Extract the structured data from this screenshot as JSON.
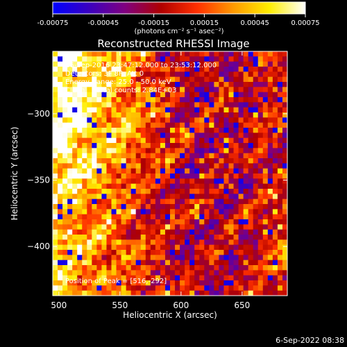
{
  "colorbar": {
    "ticks": [
      "-0.00075",
      "-0.00045",
      "-0.00015",
      "0.00015",
      "0.00045",
      "0.00075"
    ],
    "tick_values": [
      -0.00075,
      -0.00045,
      -0.00015,
      0.00015,
      0.00045,
      0.00075
    ],
    "range": [
      -0.00075,
      0.00075
    ],
    "units": "(photons cm⁻² s⁻¹ asec⁻²)",
    "colors": [
      "#0000ff",
      "#3a00c0",
      "#800080",
      "#b00000",
      "#ff3000",
      "#ff9900",
      "#ffee00",
      "#ffffff"
    ]
  },
  "chart_data": {
    "type": "heatmap",
    "title": "Reconstructed RHESSI Image",
    "xlabel": "Heliocentric X (arcsec)",
    "ylabel": "Heliocentric Y (arcsec)",
    "xlim": [
      495,
      687
    ],
    "ylim": [
      -437,
      -253
    ],
    "xticks": [
      500,
      550,
      600,
      650
    ],
    "yticks": [
      -300,
      -350,
      -400
    ],
    "peak_position": [
      516,
      -292
    ],
    "info_lines": [
      "26-Sep-2016 23:47:12.000 to 23:53:12.000",
      "Detectors: 3F 8F, Att 0",
      "Energy Range: 25.0 - 50.0 keV",
      "Clean     Total counts: 2.84E+03"
    ],
    "peak_label": "Position of Peak = [516,-292]",
    "colormap": [
      "#0000ff",
      "#3a00c0",
      "#800080",
      "#b00000",
      "#ff3000",
      "#ff9900",
      "#ffee00",
      "#ffffff"
    ]
  },
  "footer": {
    "timestamp": "6-Sep-2022 08:38"
  }
}
